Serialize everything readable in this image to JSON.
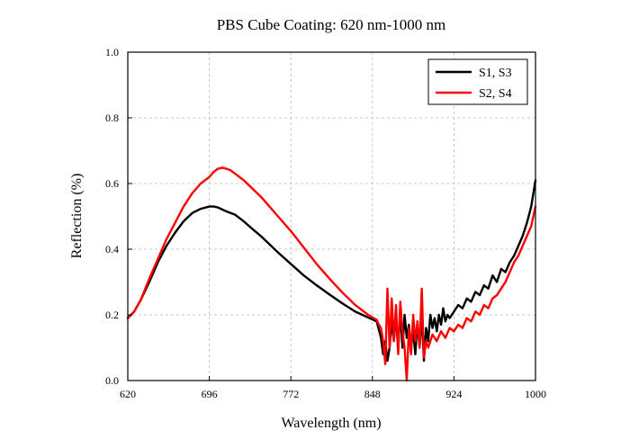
{
  "chart_data": {
    "type": "line",
    "title": "PBS Cube Coating: 620 nm-1000 nm",
    "xlabel": "Wavelength (nm)",
    "ylabel": "Reflection (%)",
    "xlim": [
      620,
      1000
    ],
    "ylim": [
      0,
      1.0
    ],
    "x_ticks": [
      620,
      696,
      772,
      848,
      924,
      1000
    ],
    "x_tick_labels": [
      "620",
      "696",
      "772",
      "848",
      "924",
      "1000"
    ],
    "y_ticks": [
      0,
      0.2,
      0.4,
      0.6,
      0.8,
      1.0
    ],
    "y_tick_labels": [
      "0.0",
      "0.2",
      "0.4",
      "0.6",
      "0.8",
      "1.0"
    ],
    "grid": true,
    "legend_position": "top-right",
    "series": [
      {
        "name": "S1, S3",
        "color": "#000000",
        "x": [
          620,
          626,
          632,
          640,
          648,
          656,
          664,
          672,
          680,
          688,
          696,
          700,
          704,
          712,
          720,
          728,
          736,
          744,
          752,
          760,
          772,
          784,
          796,
          808,
          820,
          832,
          844,
          852,
          856,
          858,
          860,
          862,
          864,
          866,
          868,
          870,
          872,
          874,
          876,
          878,
          880,
          882,
          884,
          886,
          888,
          890,
          892,
          894,
          896,
          898,
          900,
          902,
          904,
          906,
          908,
          910,
          912,
          914,
          916,
          918,
          920,
          924,
          928,
          932,
          936,
          940,
          944,
          948,
          952,
          956,
          960,
          964,
          968,
          972,
          976,
          980,
          984,
          988,
          992,
          996,
          998,
          1000
        ],
        "y": [
          0.19,
          0.21,
          0.245,
          0.3,
          0.36,
          0.41,
          0.45,
          0.485,
          0.51,
          0.523,
          0.53,
          0.53,
          0.527,
          0.515,
          0.505,
          0.485,
          0.462,
          0.44,
          0.415,
          0.39,
          0.355,
          0.32,
          0.29,
          0.262,
          0.235,
          0.21,
          0.192,
          0.18,
          0.13,
          0.08,
          0.12,
          0.06,
          0.1,
          0.18,
          0.12,
          0.2,
          0.09,
          0.22,
          0.1,
          0.2,
          0.13,
          0.17,
          0.1,
          0.15,
          0.08,
          0.18,
          0.1,
          0.2,
          0.06,
          0.16,
          0.12,
          0.2,
          0.16,
          0.19,
          0.15,
          0.2,
          0.17,
          0.22,
          0.18,
          0.2,
          0.19,
          0.21,
          0.23,
          0.22,
          0.25,
          0.24,
          0.27,
          0.26,
          0.29,
          0.28,
          0.32,
          0.3,
          0.34,
          0.33,
          0.36,
          0.38,
          0.41,
          0.44,
          0.48,
          0.53,
          0.57,
          0.61
        ]
      },
      {
        "name": "S2, S4",
        "color": "#ff0000",
        "x": [
          620,
          626,
          632,
          640,
          648,
          656,
          664,
          672,
          680,
          688,
          696,
          700,
          704,
          708,
          712,
          716,
          720,
          728,
          736,
          744,
          752,
          760,
          772,
          784,
          796,
          808,
          820,
          832,
          844,
          852,
          854,
          856,
          858,
          860,
          862,
          864,
          866,
          868,
          870,
          872,
          874,
          876,
          878,
          880,
          882,
          884,
          886,
          888,
          890,
          892,
          894,
          896,
          898,
          900,
          904,
          908,
          912,
          916,
          920,
          924,
          928,
          932,
          936,
          940,
          944,
          948,
          952,
          956,
          960,
          964,
          968,
          972,
          976,
          980,
          984,
          988,
          992,
          996,
          998,
          1000
        ],
        "y": [
          0.19,
          0.21,
          0.245,
          0.31,
          0.37,
          0.43,
          0.48,
          0.53,
          0.57,
          0.6,
          0.62,
          0.635,
          0.645,
          0.648,
          0.645,
          0.64,
          0.63,
          0.61,
          0.585,
          0.56,
          0.53,
          0.5,
          0.455,
          0.405,
          0.355,
          0.31,
          0.268,
          0.23,
          0.2,
          0.185,
          0.17,
          0.16,
          0.12,
          0.05,
          0.28,
          0.1,
          0.25,
          0.12,
          0.23,
          0.08,
          0.24,
          0.15,
          0.1,
          0.0,
          0.16,
          0.08,
          0.2,
          0.12,
          0.18,
          0.1,
          0.28,
          0.07,
          0.12,
          0.1,
          0.14,
          0.12,
          0.15,
          0.13,
          0.16,
          0.15,
          0.17,
          0.16,
          0.19,
          0.18,
          0.21,
          0.2,
          0.23,
          0.22,
          0.25,
          0.26,
          0.28,
          0.3,
          0.33,
          0.36,
          0.38,
          0.41,
          0.44,
          0.47,
          0.5,
          0.53
        ]
      }
    ]
  }
}
